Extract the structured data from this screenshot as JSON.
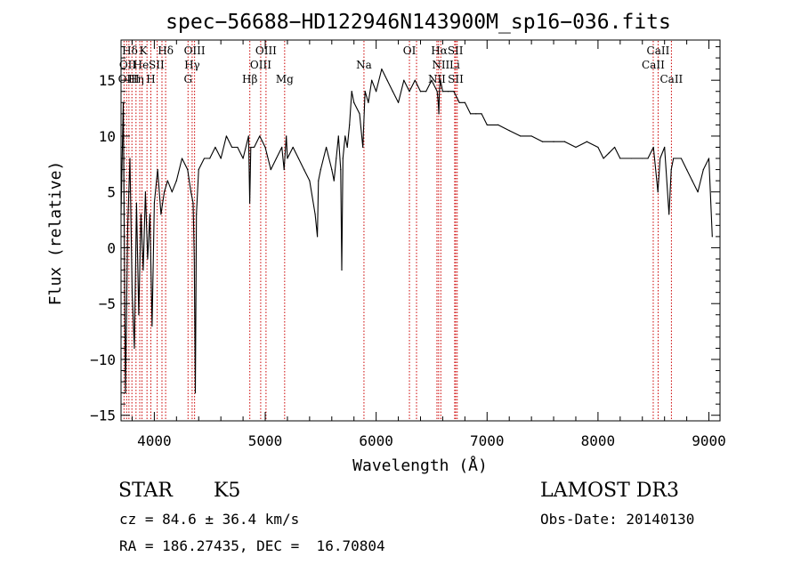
{
  "chart_data": {
    "type": "line",
    "title": "spec−56688−HD122946N143900M_sp16−036.fits",
    "xlabel": "Wavelength (Å)",
    "ylabel": "Flux (relative)",
    "xlim": [
      3700,
      9100
    ],
    "ylim": [
      -15.5,
      18.6
    ],
    "x_ticks": [
      4000,
      5000,
      6000,
      7000,
      8000,
      9000
    ],
    "x_tick_labels": [
      "4000",
      "5000",
      "6000",
      "7000",
      "8000",
      "9000"
    ],
    "y_ticks": [
      -15,
      -10,
      -5,
      0,
      5,
      10,
      15
    ],
    "y_tick_labels": [
      "−15",
      "−10",
      "−5",
      "0",
      "5",
      "10",
      "15"
    ],
    "grid": false,
    "series": [
      {
        "name": "spectrum",
        "x": [
          3700,
          3720,
          3740,
          3760,
          3780,
          3800,
          3820,
          3840,
          3860,
          3880,
          3900,
          3920,
          3940,
          3960,
          3980,
          4000,
          4030,
          4060,
          4090,
          4120,
          4160,
          4200,
          4250,
          4300,
          4330,
          4350,
          4360,
          4370,
          4380,
          4400,
          4450,
          4500,
          4550,
          4600,
          4650,
          4700,
          4750,
          4800,
          4850,
          4860,
          4870,
          4900,
          4950,
          5000,
          5050,
          5100,
          5150,
          5170,
          5190,
          5200,
          5250,
          5300,
          5350,
          5400,
          5450,
          5470,
          5480,
          5500,
          5550,
          5600,
          5620,
          5640,
          5660,
          5680,
          5690,
          5700,
          5720,
          5740,
          5760,
          5780,
          5800,
          5850,
          5880,
          5900,
          5930,
          5960,
          6000,
          6050,
          6100,
          6150,
          6200,
          6250,
          6300,
          6350,
          6400,
          6450,
          6500,
          6550,
          6560,
          6565,
          6570,
          6580,
          6600,
          6650,
          6700,
          6750,
          6800,
          6850,
          6900,
          6950,
          7000,
          7100,
          7200,
          7300,
          7400,
          7500,
          7600,
          7700,
          7800,
          7900,
          8000,
          8050,
          8100,
          8150,
          8200,
          8300,
          8400,
          8450,
          8500,
          8540,
          8560,
          8600,
          8640,
          8660,
          8680,
          8700,
          8750,
          8800,
          8850,
          8900,
          8950,
          9000,
          9030
        ],
        "values": [
          3,
          13,
          -13,
          2,
          8,
          -4,
          -9,
          4,
          -6,
          3,
          -2,
          5,
          -1,
          3,
          -7,
          4,
          7,
          3,
          5,
          6,
          5,
          6,
          8,
          7,
          5,
          4,
          -1,
          -13,
          3,
          7,
          8,
          8,
          9,
          8,
          10,
          9,
          9,
          8,
          10,
          4,
          9,
          9,
          10,
          9,
          7,
          8,
          9,
          7,
          10,
          8,
          9,
          8,
          7,
          6,
          3,
          1,
          6,
          7,
          9,
          7,
          6,
          8,
          10,
          7,
          -2,
          8,
          10,
          9,
          11,
          14,
          13,
          12,
          9,
          14,
          13,
          15,
          14,
          16,
          15,
          14,
          13,
          15,
          14,
          15,
          14,
          14,
          15,
          14,
          13,
          12,
          14,
          15,
          14,
          14,
          14,
          13,
          13,
          12,
          12,
          12,
          11,
          11,
          10.5,
          10,
          10,
          9.5,
          9.5,
          9.5,
          9,
          9.5,
          9,
          8,
          8.5,
          9,
          8,
          8,
          8,
          8,
          9,
          5,
          8,
          9,
          3,
          7,
          8,
          8,
          8,
          7,
          6,
          5,
          7,
          8,
          1
        ]
      }
    ],
    "line_markers": {
      "wavelengths": [
        3727,
        3750,
        3771,
        3798,
        3835,
        3869,
        3889,
        3934,
        3969,
        4026,
        4069,
        4102,
        4304,
        4341,
        4363,
        4861,
        4959,
        5007,
        5175,
        5890,
        6300,
        6364,
        6548,
        6563,
        6583,
        6708,
        6717,
        6731,
        8498,
        8542,
        8662
      ],
      "labels": [
        {
          "text": "Hδ",
          "wl": 3780,
          "row": 0
        },
        {
          "text": "K",
          "wl": 3900,
          "row": 0
        },
        {
          "text": "Hδ",
          "wl": 4102,
          "row": 0
        },
        {
          "text": "OIII",
          "wl": 4363,
          "row": 0
        },
        {
          "text": "OIII",
          "wl": 5007,
          "row": 0
        },
        {
          "text": "OI",
          "wl": 6300,
          "row": 0
        },
        {
          "text": "HαSII",
          "wl": 6640,
          "row": 0
        },
        {
          "text": "CaII",
          "wl": 8542,
          "row": 0
        },
        {
          "text": "OII",
          "wl": 3760,
          "row": 1
        },
        {
          "text": "He",
          "wl": 3880,
          "row": 1
        },
        {
          "text": "SII",
          "wl": 4020,
          "row": 1
        },
        {
          "text": "Hγ",
          "wl": 4341,
          "row": 1
        },
        {
          "text": "OIII",
          "wl": 4959,
          "row": 1
        },
        {
          "text": "Na",
          "wl": 5890,
          "row": 1
        },
        {
          "text": "NII",
          "wl": 6583,
          "row": 1
        },
        {
          "text": "Li",
          "wl": 6708,
          "row": 1
        },
        {
          "text": "CaII",
          "wl": 8498,
          "row": 1
        },
        {
          "text": "OIII",
          "wl": 3769,
          "row": 2
        },
        {
          "text": "Hη",
          "wl": 3835,
          "row": 2
        },
        {
          "text": "H",
          "wl": 3969,
          "row": 2
        },
        {
          "text": "G",
          "wl": 4304,
          "row": 2
        },
        {
          "text": "Hβ",
          "wl": 4861,
          "row": 2
        },
        {
          "text": "Mg",
          "wl": 5175,
          "row": 2
        },
        {
          "text": "NII",
          "wl": 6548,
          "row": 2
        },
        {
          "text": "SII",
          "wl": 6717,
          "row": 2
        },
        {
          "text": "CaII",
          "wl": 8662,
          "row": 2
        }
      ],
      "color": "#cc0000"
    }
  },
  "info": {
    "object_class": "STAR",
    "subclass": "K5",
    "survey": "LAMOST DR3",
    "cz_line": "cz = 84.6 ± 36.4 km/s",
    "obs_date": "Obs-Date: 20140130",
    "radec": "RA = 186.27435, DEC =  16.70804"
  }
}
